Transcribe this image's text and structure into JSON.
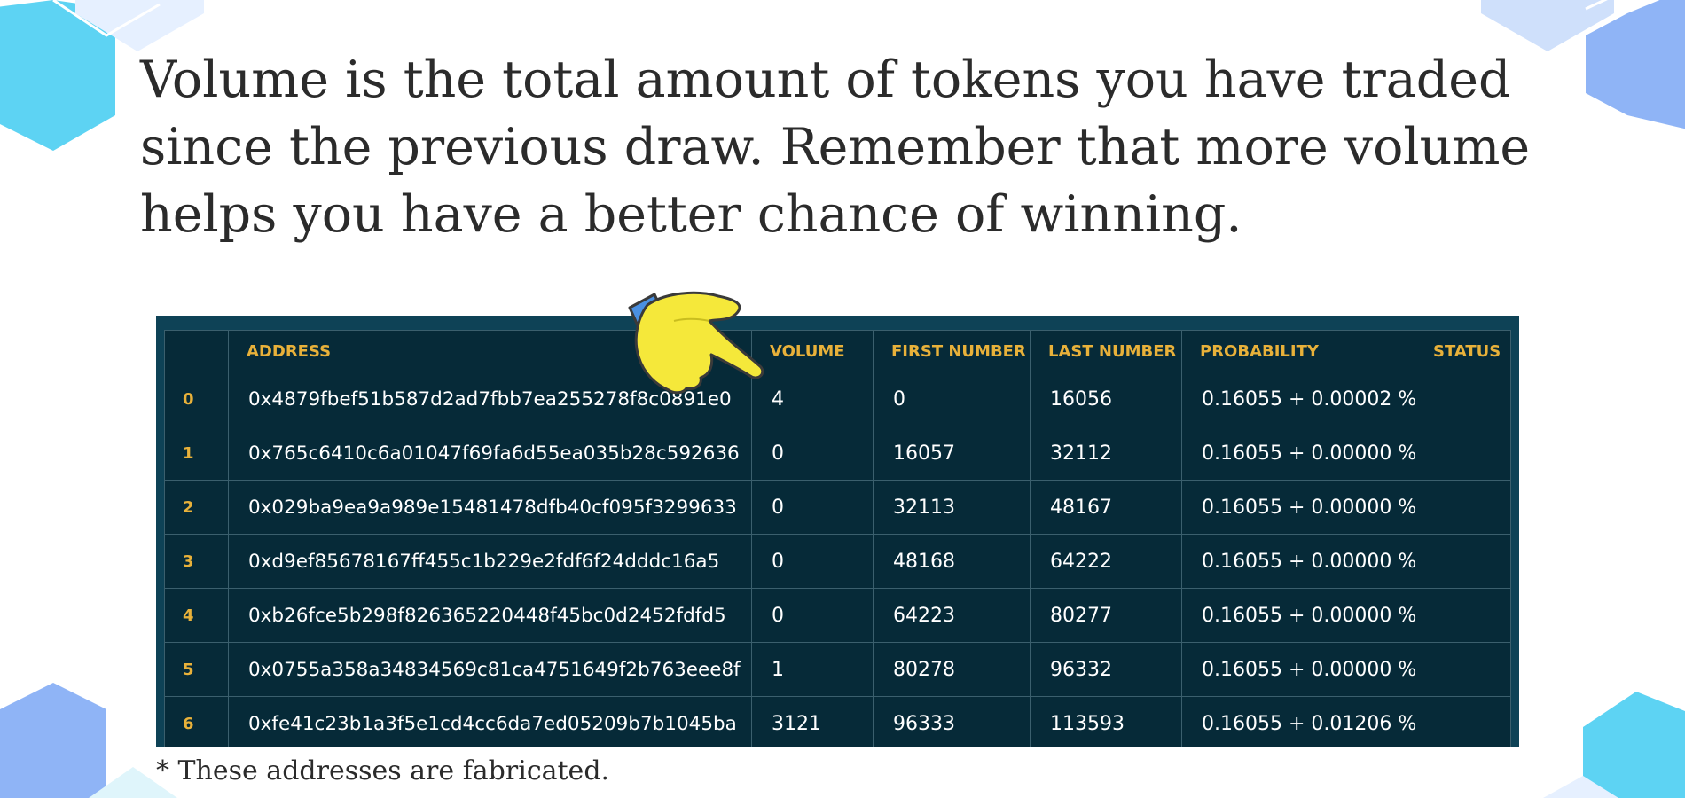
{
  "headline": "Volume is the total amount of tokens you have traded since the previous draw. Remember that more volume helps you have a better chance of winning.",
  "table": {
    "columns": [
      "",
      "ADDRESS",
      "VOLUME",
      "FIRST NUMBER",
      "LAST NUMBER",
      "PROBABILITY",
      "STATUS"
    ],
    "rows": [
      [
        "0",
        "0x4879fbef51b587d2ad7fbb7ea255278f8c0891e0",
        "4",
        "0",
        "16056",
        "0.16055 + 0.00002 %",
        ""
      ],
      [
        "1",
        "0x765c6410c6a01047f69fa6d55ea035b28c592636",
        "0",
        "16057",
        "32112",
        "0.16055 + 0.00000 %",
        ""
      ],
      [
        "2",
        "0x029ba9ea9a989e15481478dfb40cf095f3299633",
        "0",
        "32113",
        "48167",
        "0.16055 + 0.00000 %",
        ""
      ],
      [
        "3",
        "0xd9ef85678167ff455c1b229e2fdf6f24dddc16a5",
        "0",
        "48168",
        "64222",
        "0.16055 + 0.00000 %",
        ""
      ],
      [
        "4",
        "0xb26fce5b298f826365220448f45bc0d2452fdfd5",
        "0",
        "64223",
        "80277",
        "0.16055 + 0.00000 %",
        ""
      ],
      [
        "5",
        "0x0755a358a34834569c81ca4751649f2b763eee8f",
        "1",
        "80278",
        "96332",
        "0.16055 + 0.00000 %",
        ""
      ],
      [
        "6",
        "0xfe41c23b1a3f5e1cd4cc6da7ed05209b7b1045ba",
        "3121",
        "96333",
        "113593",
        "0.16055 + 0.01206 %",
        ""
      ]
    ]
  },
  "footnote": "* These addresses are fabricated.",
  "icons": {
    "pointer": "pointing-hand-icon",
    "decoration": "hexagon-icon"
  },
  "colors": {
    "table_frame": "#0e4256",
    "table_body": "#062a38",
    "header_text": "#e8b13a",
    "cell_text": "#ffffff",
    "hex_cyan": "#5dd3f3",
    "hex_blue": "#8fb4f6",
    "hand_yellow": "#f5e83a"
  }
}
